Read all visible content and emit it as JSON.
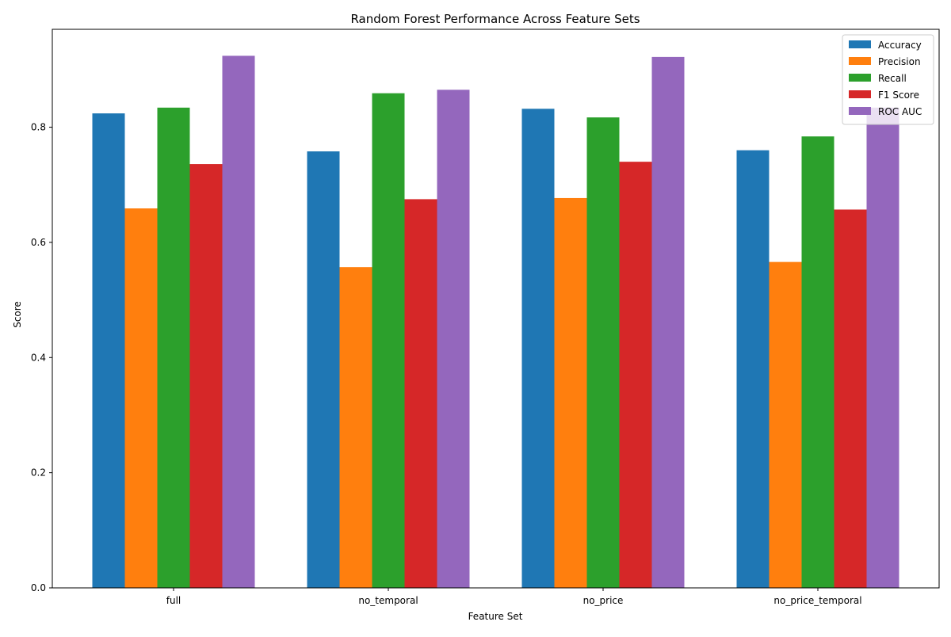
{
  "chart_data": {
    "type": "bar",
    "title": "Random Forest Performance Across Feature Sets",
    "xlabel": "Feature Set",
    "ylabel": "Score",
    "categories": [
      "full",
      "no_temporal",
      "no_price",
      "no_price_temporal"
    ],
    "ylim": [
      0,
      0.97
    ],
    "yticks": [
      "0.0",
      "0.2",
      "0.4",
      "0.6",
      "0.8"
    ],
    "ytick_values": [
      0,
      0.2,
      0.4,
      0.6,
      0.8
    ],
    "grid": false,
    "legend_position": "top-right",
    "series": [
      {
        "name": "Accuracy",
        "color": "#1f77b4",
        "values": [
          0.824,
          0.758,
          0.832,
          0.76
        ]
      },
      {
        "name": "Precision",
        "color": "#ff7f0e",
        "values": [
          0.659,
          0.557,
          0.677,
          0.566
        ]
      },
      {
        "name": "Recall",
        "color": "#2ca02c",
        "values": [
          0.834,
          0.859,
          0.817,
          0.784
        ]
      },
      {
        "name": "F1 Score",
        "color": "#d62728",
        "values": [
          0.736,
          0.675,
          0.74,
          0.657
        ]
      },
      {
        "name": "ROC AUC",
        "color": "#9467bd",
        "values": [
          0.924,
          0.865,
          0.922,
          0.834
        ]
      }
    ]
  }
}
